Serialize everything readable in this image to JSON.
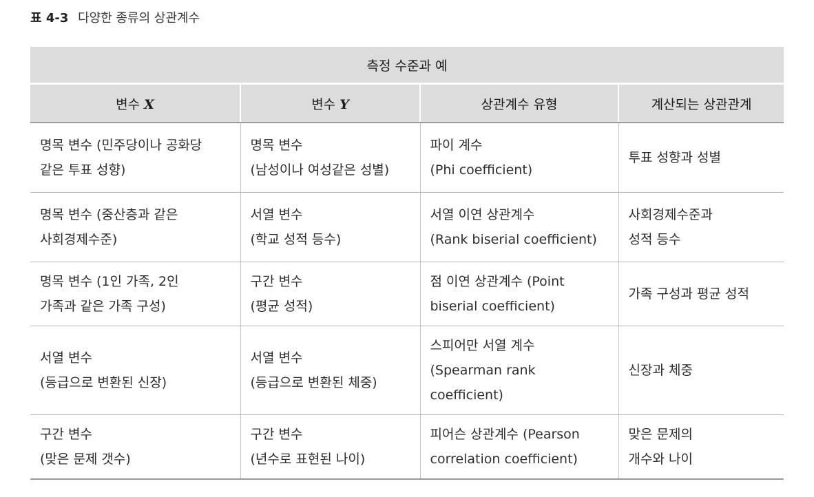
{
  "caption": {
    "number": "표 4-3",
    "title": "다양한 종류의 상관계수"
  },
  "table": {
    "group_header": "측정 수준과 예",
    "columns": [
      {
        "prefix": "변수 ",
        "var": "X"
      },
      {
        "prefix": "변수 ",
        "var": "Y"
      },
      {
        "prefix": "상관계수 유형",
        "var": ""
      },
      {
        "prefix": "계산되는 상관관계",
        "var": ""
      }
    ],
    "rows": [
      [
        [
          "명목 변수 (민주당이나 공화당",
          "같은 투표 성향)"
        ],
        [
          "명목 변수",
          "(남성이나 여성같은 성별)"
        ],
        [
          "파이 계수",
          "(Phi coefficient)"
        ],
        [
          "투표 성향과 성별"
        ]
      ],
      [
        [
          "명목 변수 (중산층과 같은",
          "사회경제수준)"
        ],
        [
          "서열 변수",
          "(학교 성적 등수)"
        ],
        [
          "서열 이연 상관계수",
          "(Rank biserial coefficient)"
        ],
        [
          "사회경제수준과",
          "성적 등수"
        ]
      ],
      [
        [
          "명목 변수 (1인 가족, 2인",
          "가족과 같은 가족 구성)"
        ],
        [
          "구간 변수",
          "(평균 성적)"
        ],
        [
          "점 이연 상관계수 (Point",
          "biserial coefficient)"
        ],
        [
          "가족 구성과 평균 성적"
        ]
      ],
      [
        [
          "서열 변수",
          "(등급으로 변환된 신장)"
        ],
        [
          "서열 변수",
          "(등급으로 변환된 체중)"
        ],
        [
          "스피어만 서열 계수",
          "(Spearman rank",
          "coefficient)"
        ],
        [
          "신장과 체중"
        ]
      ],
      [
        [
          "구간 변수",
          "(맞은 문제 갯수)"
        ],
        [
          "구간 변수",
          "(년수로 표현된 나이)"
        ],
        [
          "피어슨 상관계수 (Pearson",
          "correlation coefficient)"
        ],
        [
          "맞은 문제의",
          "개수와 나이"
        ]
      ]
    ]
  }
}
